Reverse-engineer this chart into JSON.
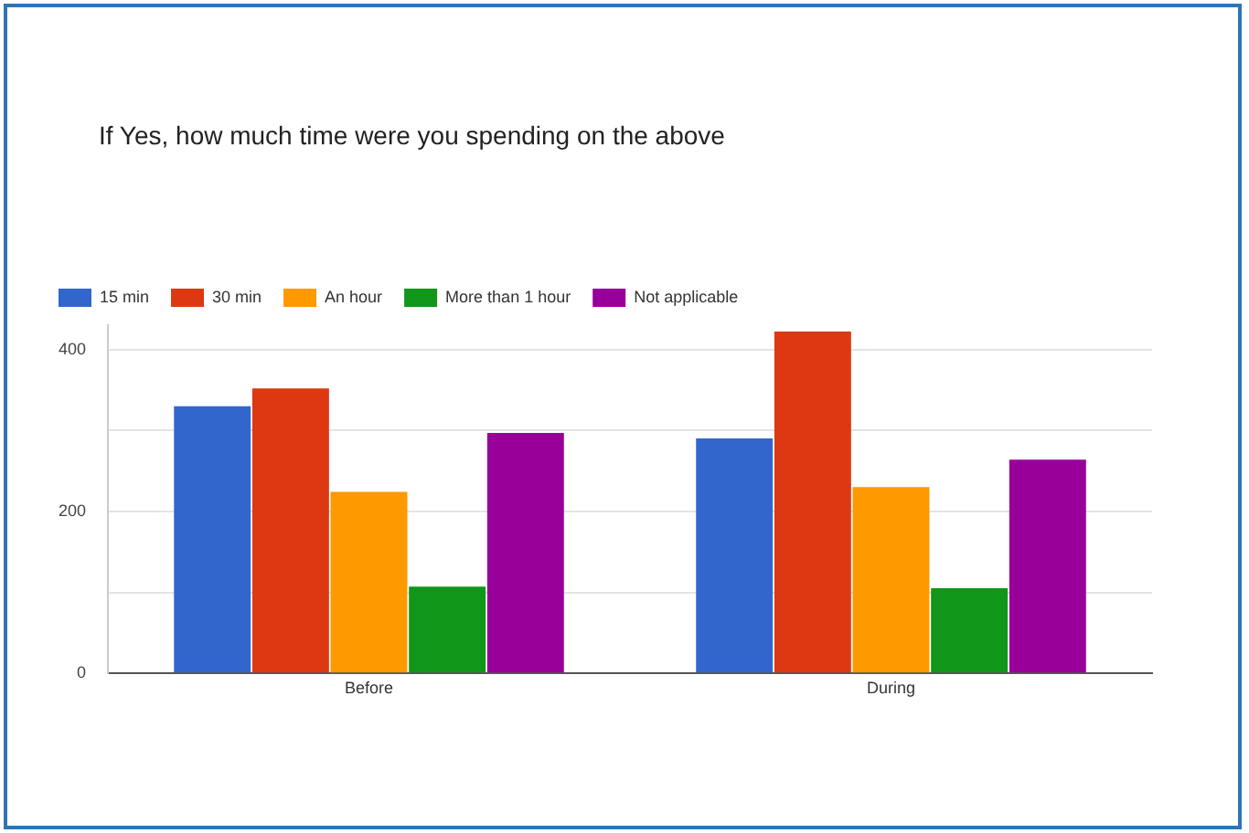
{
  "chart_data": {
    "type": "bar",
    "title": "If Yes, how much time were you spending on the above",
    "categories": [
      "Before",
      "During"
    ],
    "series": [
      {
        "name": "15 min",
        "color": "#3366cc",
        "values": [
          330,
          290
        ]
      },
      {
        "name": "30 min",
        "color": "#dc3912",
        "values": [
          352,
          422
        ]
      },
      {
        "name": "An hour",
        "color": "#ff9900",
        "values": [
          224,
          230
        ]
      },
      {
        "name": "More than 1 hour",
        "color": "#109618",
        "values": [
          107,
          105
        ]
      },
      {
        "name": "Not applicable",
        "color": "#990099",
        "values": [
          297,
          264
        ]
      }
    ],
    "ylim": [
      0,
      430
    ],
    "yticks": [
      0,
      {
        "value": 100,
        "label": null
      },
      200,
      {
        "value": 300,
        "label": null
      },
      400
    ],
    "grid": "y",
    "legend": "top left"
  }
}
